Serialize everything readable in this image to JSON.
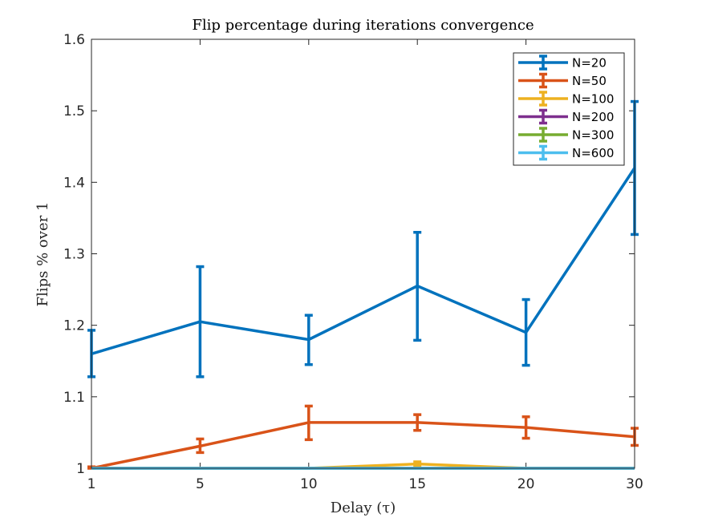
{
  "chart_data": {
    "type": "line",
    "title": "Flip percentage during iterations convergence",
    "xlabel": "Delay (τ)",
    "ylabel": "Flips % over 1",
    "x_ticks": [
      "1",
      "5",
      "10",
      "15",
      "20",
      "30"
    ],
    "y_ticks": [
      "1",
      "1.1",
      "1.2",
      "1.3",
      "1.4",
      "1.5",
      "1.6"
    ],
    "ylim": [
      1,
      1.6
    ],
    "grid": false,
    "legend_position": "top-right",
    "series": [
      {
        "name": "N=20",
        "color": "#0072BD",
        "values": [
          1.16,
          1.205,
          1.18,
          1.255,
          1.19,
          1.42
        ],
        "err_low": [
          1.128,
          1.128,
          1.145,
          1.179,
          1.144,
          1.327
        ],
        "err_high": [
          1.193,
          1.282,
          1.214,
          1.33,
          1.236,
          1.513
        ]
      },
      {
        "name": "N=50",
        "color": "#D95319",
        "values": [
          1.0,
          1.031,
          1.064,
          1.064,
          1.057,
          1.044
        ],
        "err_low": [
          1.0,
          1.022,
          1.04,
          1.053,
          1.042,
          1.032
        ],
        "err_high": [
          1.002,
          1.041,
          1.087,
          1.075,
          1.072,
          1.056
        ]
      },
      {
        "name": "N=100",
        "color": "#EDB120",
        "values": [
          1.0,
          1.0,
          1.0,
          1.006,
          1.0,
          1.0
        ],
        "err_low": [
          1.0,
          1.0,
          1.0,
          1.002,
          1.0,
          1.0
        ],
        "err_high": [
          1.0,
          1.0,
          1.0,
          1.009,
          1.0,
          1.0
        ]
      },
      {
        "name": "N=200",
        "color": "#7E2F8E",
        "values": [
          1.0,
          1.0,
          1.0,
          1.0,
          1.0,
          1.0
        ],
        "err_low": [
          1.0,
          1.0,
          1.0,
          1.0,
          1.0,
          1.0
        ],
        "err_high": [
          1.0,
          1.0,
          1.0,
          1.0,
          1.0,
          1.0
        ]
      },
      {
        "name": "N=300",
        "color": "#77AC30",
        "values": [
          1.0,
          1.0,
          1.0,
          1.0,
          1.0,
          1.0
        ],
        "err_low": [
          1.0,
          1.0,
          1.0,
          1.0,
          1.0,
          1.0
        ],
        "err_high": [
          1.0,
          1.0,
          1.0,
          1.0,
          1.0,
          1.0
        ]
      },
      {
        "name": "N=600",
        "color": "#4DBEEE",
        "values": [
          1.0,
          1.0,
          1.0,
          1.0,
          1.0,
          1.0
        ],
        "err_low": [
          1.0,
          1.0,
          1.0,
          1.0,
          1.0,
          1.0
        ],
        "err_high": [
          1.0,
          1.0,
          1.0,
          1.0,
          1.0,
          1.0
        ]
      }
    ]
  }
}
